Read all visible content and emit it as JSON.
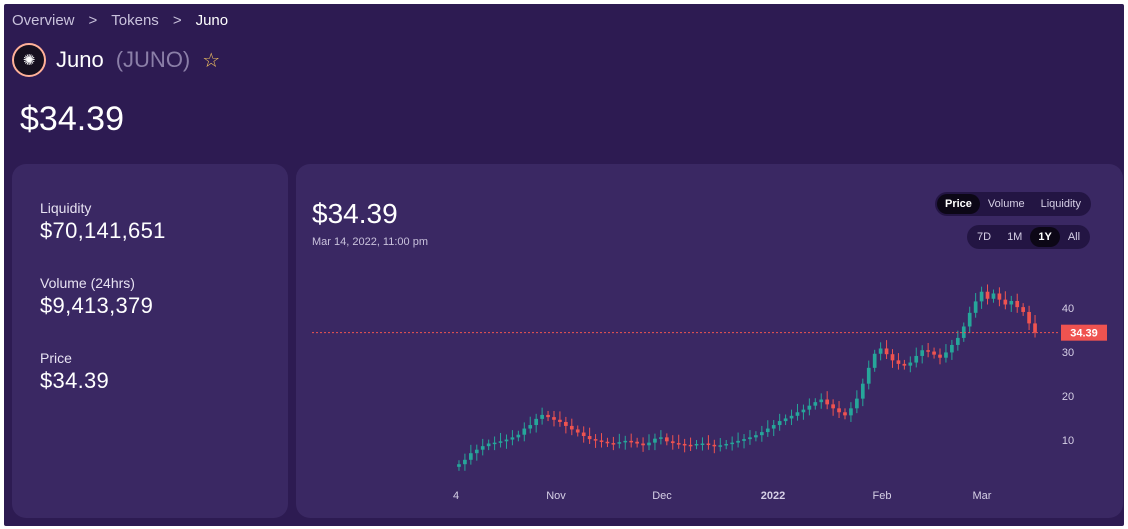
{
  "breadcrumb": {
    "items": [
      "Overview",
      "Tokens",
      "Juno"
    ],
    "separator": ">"
  },
  "token": {
    "logo_glyph": "✺",
    "name": "Juno",
    "symbol": "(JUNO)",
    "favorite_icon": "☆"
  },
  "price_display": "$34.39",
  "stats": {
    "liquidity_label": "Liquidity",
    "liquidity_value": "$70,141,651",
    "volume_label": "Volume (24hrs)",
    "volume_value": "$9,413,379",
    "price_label": "Price",
    "price_value": "$34.39"
  },
  "chart_panel": {
    "price": "$34.39",
    "timestamp": "Mar 14, 2022, 11:00 pm",
    "metric_tabs": [
      "Price",
      "Volume",
      "Liquidity"
    ],
    "active_metric": "Price",
    "range_tabs": [
      "7D",
      "1M",
      "1Y",
      "All"
    ],
    "active_range": "1Y"
  },
  "colors": {
    "background": "#2d1b52",
    "card": "#3a2863",
    "up": "#26a69a",
    "down": "#ef5350",
    "price_line": "#ef5350"
  },
  "chart_data": {
    "type": "candlestick",
    "x_ticks": [
      "4",
      "Nov",
      "Dec",
      "2022",
      "Feb",
      "Mar"
    ],
    "y_ticks": [
      10,
      20,
      30,
      40
    ],
    "ylim": [
      0,
      50
    ],
    "current_price_label": "34.39",
    "current_price": 34.39,
    "close_series": [
      4.5,
      5.5,
      7,
      7.8,
      8.6,
      9.2,
      9.4,
      9.7,
      10.1,
      10.6,
      11.2,
      12.6,
      13.4,
      14.8,
      15.7,
      15.2,
      14.6,
      14.1,
      13.2,
      12.4,
      11.7,
      10.9,
      10.2,
      9.9,
      9.6,
      9.3,
      9.2,
      9.5,
      9.8,
      9.6,
      9.2,
      8.8,
      9.4,
      10.3,
      10.6,
      9.7,
      9.3,
      9.1,
      8.9,
      8.8,
      9.1,
      9.2,
      8.9,
      8.7,
      8.8,
      9.1,
      9.4,
      9.8,
      10.2,
      10.6,
      11.1,
      11.8,
      12.6,
      13.4,
      14.3,
      14.9,
      15.5,
      16.3,
      16.9,
      17.8,
      18.6,
      19.2,
      18.1,
      17.2,
      16.3,
      15.6,
      17.2,
      19.4,
      22.8,
      26.4,
      29.6,
      30.8,
      29.5,
      28.1,
      27.3,
      26.9,
      27.6,
      29.1,
      30.4,
      30.1,
      29.4,
      28.7,
      29.9,
      31.6,
      33.2,
      35.8,
      38.9,
      41.5,
      43.7,
      42.1,
      43.3,
      41.9,
      40.8,
      41.6,
      40.2,
      39.1,
      36.5,
      34.39
    ]
  }
}
